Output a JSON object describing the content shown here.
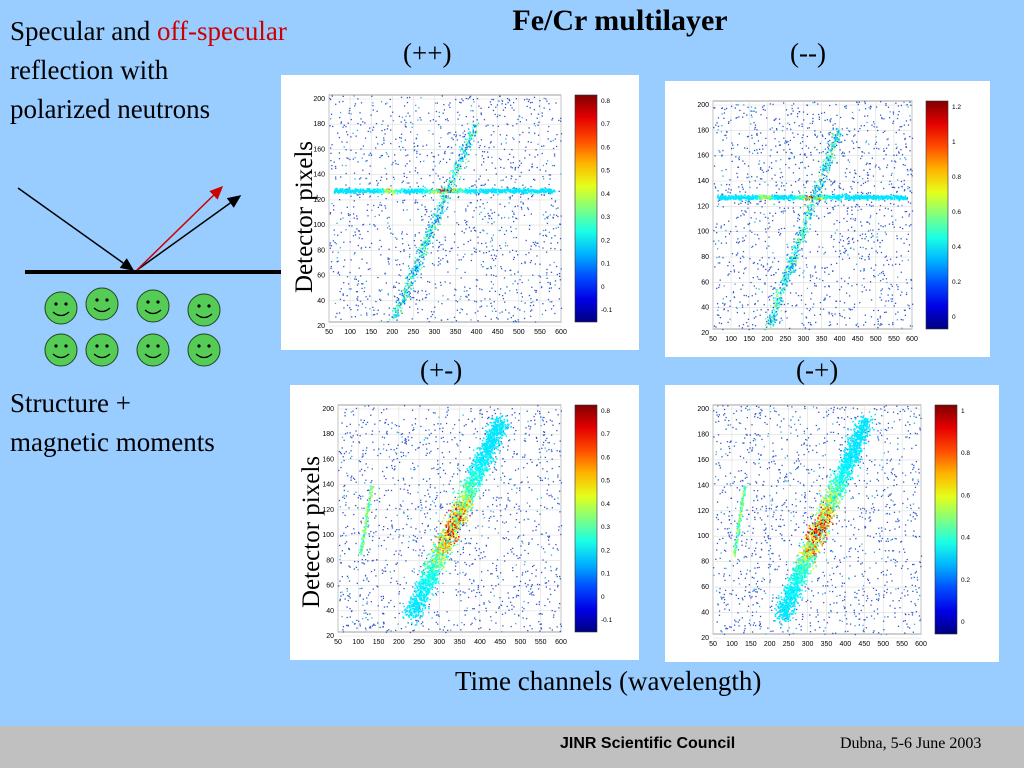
{
  "slide": {
    "title": "Fe/Cr multilayer",
    "intro_part1": "Specular and ",
    "intro_highlight": "off-specular",
    "intro_part2": "reflection with",
    "intro_part3": "polarized neutrons",
    "structure_line1": "Structure +",
    "structure_line2": "magnetic moments",
    "y_axis_label": "Detector pixels",
    "x_axis_label": "Time channels (wavelength)",
    "highlight_color": "#cc0000",
    "background_color": "#99ccff"
  },
  "panels": [
    {
      "label": "(++)",
      "colorbar_ticks": [
        "0.8",
        "0.7",
        "0.6",
        "0.5",
        "0.4",
        "0.3",
        "0.2",
        "0.1",
        "0",
        "-0.1"
      ]
    },
    {
      "label": "(--)",
      "colorbar_ticks": [
        "1.2",
        "1",
        "0.8",
        "0.6",
        "0.4",
        "0.2",
        "0"
      ]
    },
    {
      "label": "(+-)",
      "colorbar_ticks": [
        "0.8",
        "0.7",
        "0.6",
        "0.5",
        "0.4",
        "0.3",
        "0.2",
        "0.1",
        "0",
        "-0.1"
      ]
    },
    {
      "label": "(-+)",
      "colorbar_ticks": [
        "1",
        "0.8",
        "0.6",
        "0.4",
        "0.2",
        "0"
      ]
    }
  ],
  "plot_axes": {
    "x_ticks": [
      "50",
      "100",
      "150",
      "200",
      "250",
      "300",
      "350",
      "400",
      "450",
      "500",
      "550",
      "600"
    ],
    "y_ticks": [
      "200",
      "180",
      "160",
      "140",
      "120",
      "100",
      "80",
      "60",
      "40",
      "20"
    ]
  },
  "footer": {
    "council": "JINR Scientific Council",
    "date": "Dubna, 5-6 June 2003"
  },
  "icons": {
    "face": "smiley-face-icon",
    "mirror": "reflection-diagram"
  }
}
